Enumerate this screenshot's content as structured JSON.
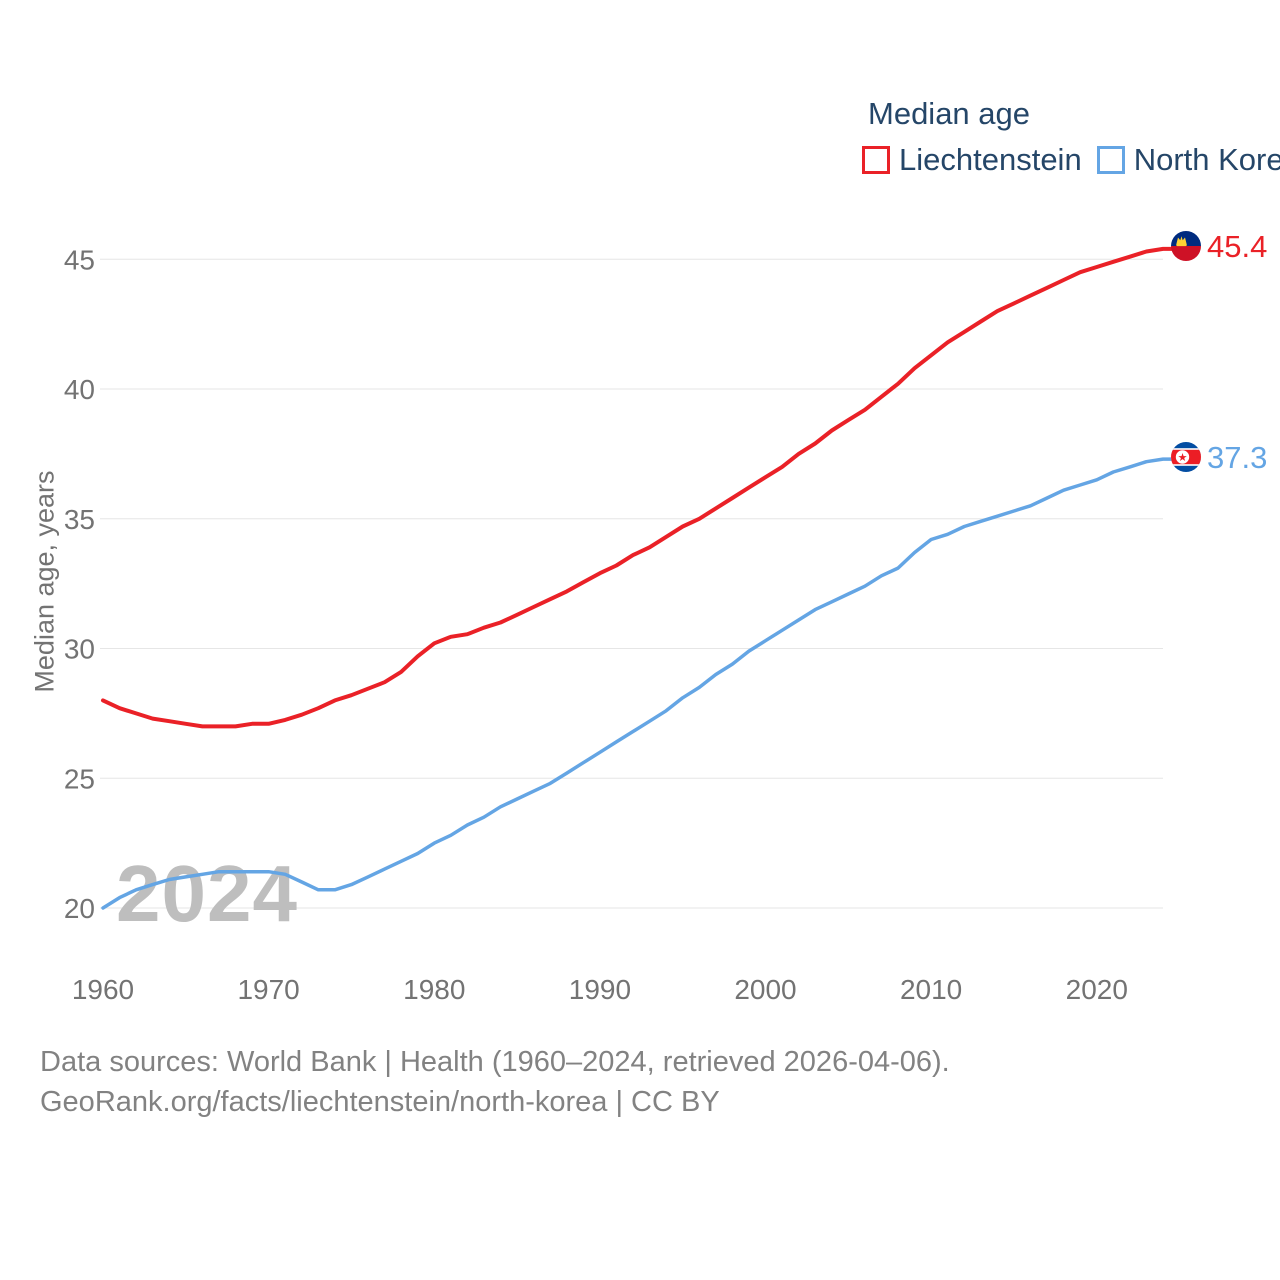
{
  "legend": {
    "title": "Median age",
    "items": [
      {
        "label": "Liechtenstein",
        "color": "#ea2127"
      },
      {
        "label": "North Korea",
        "color": "#64a5e4"
      }
    ]
  },
  "watermark": "2024",
  "y_axis_title": "Median age, years",
  "footer": {
    "line1": "Data sources: World Bank | Health (1960–2024, retrieved 2026-04-06).",
    "line2": "GeoRank.org/facts/liechtenstein/north-korea | CC BY"
  },
  "icons": {
    "liechtenstein_flag": {
      "blue": "#002B7F",
      "red": "#CE1126",
      "gold": "#FFD234"
    },
    "north_korea_flag": {
      "blue": "#034DA2",
      "red": "#EC1D25",
      "white": "#FFFFFF"
    }
  },
  "colors": {
    "grid": "#e6e6e6",
    "tick_text": "#737373",
    "legend_text": "#254668",
    "footer_text": "#828282",
    "watermark_text": "#bebebe"
  },
  "chart_data": {
    "type": "line",
    "title": "Median age",
    "xlabel": "",
    "ylabel": "Median age, years",
    "xlim": [
      1960,
      2024
    ],
    "ylim": [
      20,
      45
    ],
    "grid": "horizontal",
    "legend_position": "top-right",
    "y_ticks": [
      20,
      25,
      30,
      35,
      40,
      45
    ],
    "x_ticks": [
      1960,
      1970,
      1980,
      1990,
      2000,
      2010,
      2020
    ],
    "x": [
      1960,
      1961,
      1962,
      1963,
      1964,
      1965,
      1966,
      1967,
      1968,
      1969,
      1970,
      1971,
      1972,
      1973,
      1974,
      1975,
      1976,
      1977,
      1978,
      1979,
      1980,
      1981,
      1982,
      1983,
      1984,
      1985,
      1986,
      1987,
      1988,
      1989,
      1990,
      1991,
      1992,
      1993,
      1994,
      1995,
      1996,
      1997,
      1998,
      1999,
      2000,
      2001,
      2002,
      2003,
      2004,
      2005,
      2006,
      2007,
      2008,
      2009,
      2010,
      2011,
      2012,
      2013,
      2014,
      2015,
      2016,
      2017,
      2018,
      2019,
      2020,
      2021,
      2022,
      2023,
      2024
    ],
    "series": [
      {
        "name": "Liechtenstein",
        "color": "#ea2127",
        "end_label": "45.4",
        "end_value": 45.4,
        "values": [
          28.0,
          27.7,
          27.5,
          27.3,
          27.2,
          27.1,
          27.0,
          27.0,
          27.0,
          27.1,
          27.1,
          27.25,
          27.45,
          27.7,
          28.0,
          28.2,
          28.45,
          28.7,
          29.1,
          29.7,
          30.2,
          30.45,
          30.55,
          30.8,
          31.0,
          31.3,
          31.6,
          31.9,
          32.2,
          32.55,
          32.9,
          33.2,
          33.6,
          33.9,
          34.3,
          34.7,
          35.0,
          35.4,
          35.8,
          36.2,
          36.6,
          37.0,
          37.5,
          37.9,
          38.4,
          38.8,
          39.2,
          39.7,
          40.2,
          40.8,
          41.3,
          41.8,
          42.2,
          42.6,
          43.0,
          43.3,
          43.6,
          43.9,
          44.2,
          44.5,
          44.7,
          44.9,
          45.1,
          45.3,
          45.4
        ]
      },
      {
        "name": "North Korea",
        "color": "#64a5e4",
        "end_label": "37.3",
        "end_value": 37.3,
        "values": [
          20.0,
          20.4,
          20.7,
          20.9,
          21.1,
          21.2,
          21.3,
          21.4,
          21.4,
          21.4,
          21.4,
          21.3,
          21.0,
          20.7,
          20.7,
          20.9,
          21.2,
          21.5,
          21.8,
          22.1,
          22.5,
          22.8,
          23.2,
          23.5,
          23.9,
          24.2,
          24.5,
          24.8,
          25.2,
          25.6,
          26.0,
          26.4,
          26.8,
          27.2,
          27.6,
          28.1,
          28.5,
          29.0,
          29.4,
          29.9,
          30.3,
          30.7,
          31.1,
          31.5,
          31.8,
          32.1,
          32.4,
          32.8,
          33.1,
          33.7,
          34.2,
          34.4,
          34.7,
          34.9,
          35.1,
          35.3,
          35.5,
          35.8,
          36.1,
          36.3,
          36.5,
          36.8,
          37.0,
          37.2,
          37.3
        ]
      }
    ]
  }
}
